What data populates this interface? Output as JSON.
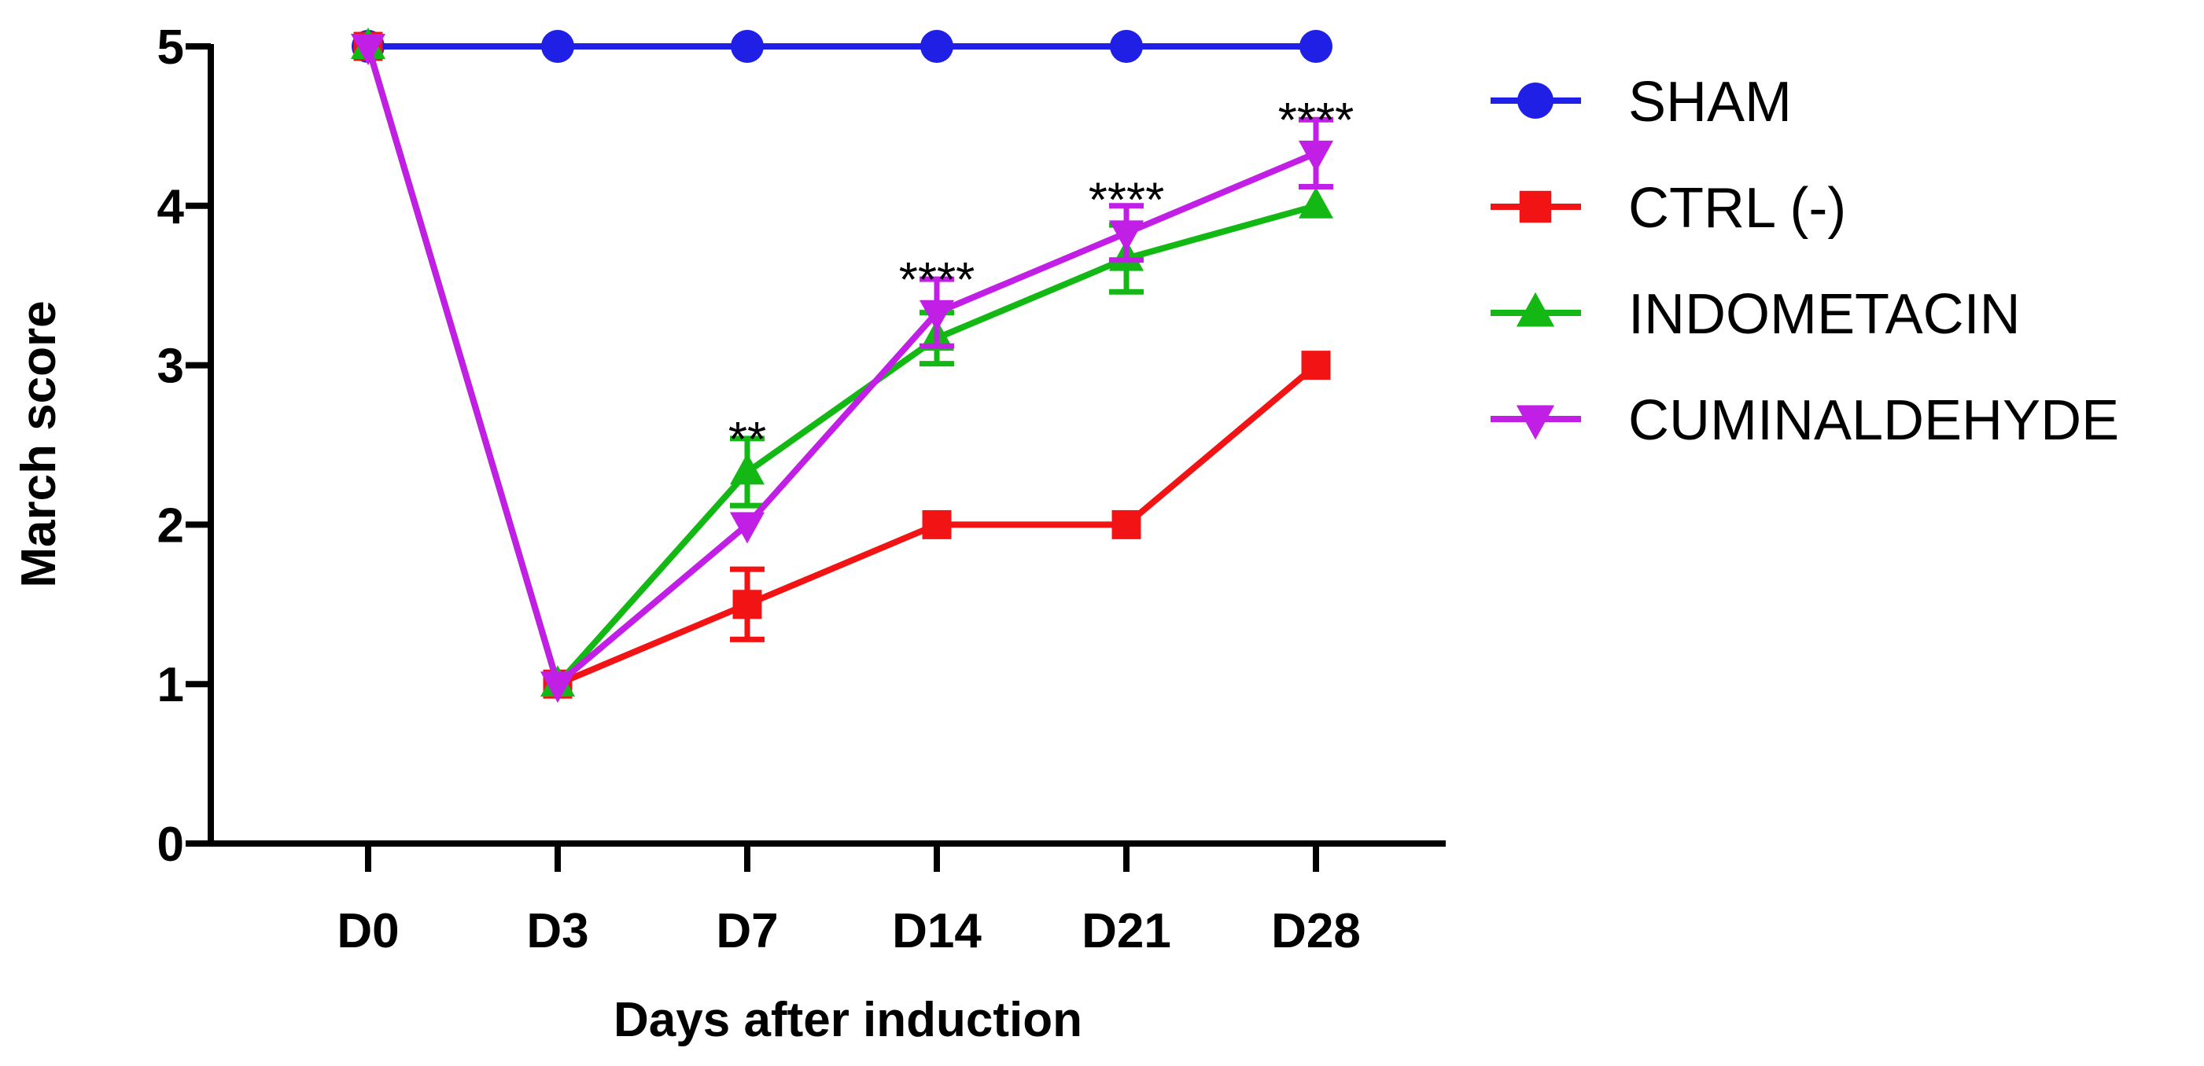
{
  "chart_data": {
    "type": "line",
    "title": "",
    "xlabel": "Days after induction",
    "ylabel": "March score",
    "categories": [
      "D0",
      "D3",
      "D7",
      "D14",
      "D21",
      "D28"
    ],
    "ylim": [
      0,
      5
    ],
    "yticks": [
      "0",
      "1",
      "2",
      "3",
      "4",
      "5"
    ],
    "grid": false,
    "legend_position": "right",
    "series": [
      {
        "name": "SHAM",
        "color": "#1F1FE6",
        "marker": "circle",
        "values": [
          5,
          5,
          5,
          5,
          5,
          5
        ],
        "errors": [
          0,
          0,
          0,
          0,
          0,
          0
        ]
      },
      {
        "name": "CTRL (-)",
        "color": "#F21414",
        "marker": "square",
        "values": [
          5,
          1,
          1.5,
          2,
          2,
          3
        ],
        "errors": [
          0,
          0,
          0.22,
          0,
          0,
          0
        ]
      },
      {
        "name": "INDOMETACIN",
        "color": "#14B814",
        "marker": "triangle-up",
        "values": [
          5,
          1,
          2.33,
          3.17,
          3.67,
          4
        ],
        "errors": [
          0,
          0,
          0.21,
          0.16,
          0.21,
          0
        ]
      },
      {
        "name": "CUMINALDEHYDE",
        "color": "#C21FE6",
        "marker": "triangle-down",
        "values": [
          5,
          1,
          2,
          3.33,
          3.83,
          4.33
        ],
        "errors": [
          0,
          0,
          0,
          0.21,
          0.17,
          0.21
        ]
      }
    ],
    "annotations": [
      {
        "category": "D7",
        "text": "**",
        "y": 2.58
      },
      {
        "category": "D14",
        "text": "****",
        "y": 3.58
      },
      {
        "category": "D21",
        "text": "****",
        "y": 4.08
      },
      {
        "category": "D28",
        "text": "****",
        "y": 4.58
      }
    ]
  }
}
